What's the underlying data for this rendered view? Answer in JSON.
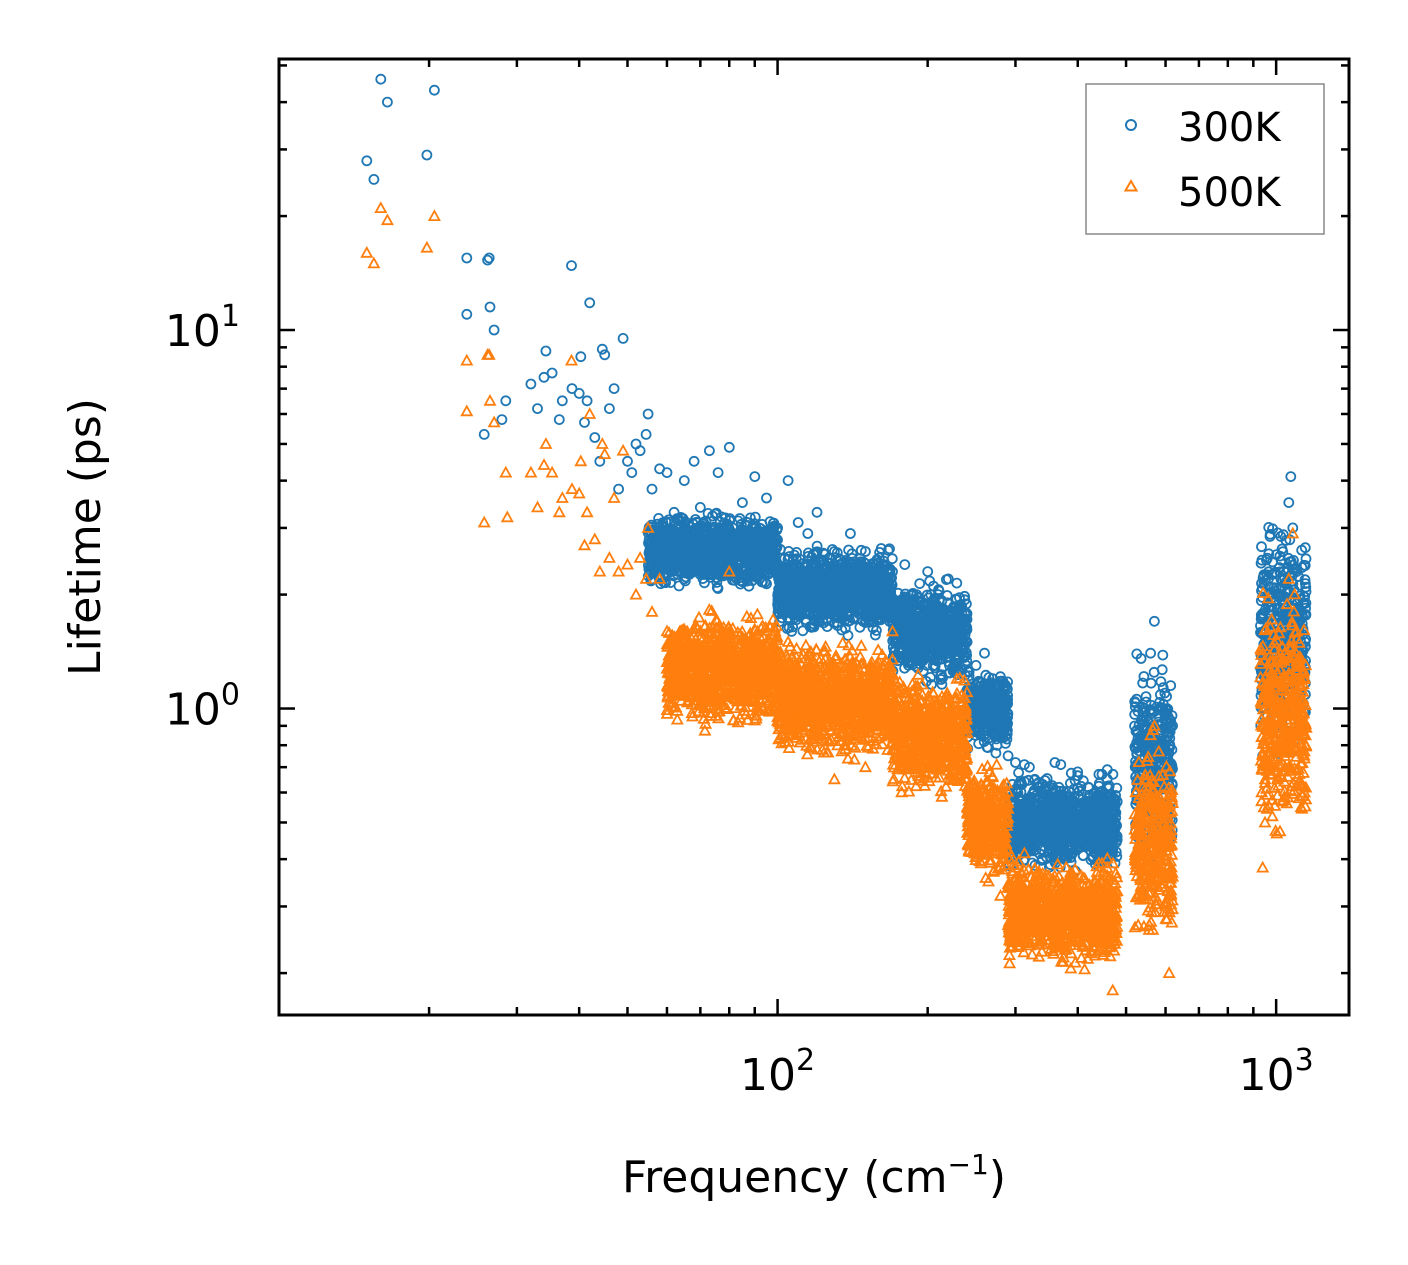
{
  "chart_data": {
    "type": "scatter",
    "title": "",
    "xlabel": "Frequency (cm",
    "xlabel_superscript": "−1",
    "xlabel_suffix": ")",
    "ylabel": "Lifetime (ps)",
    "xscale": "log",
    "yscale": "log",
    "xlim": [
      10,
      1400
    ],
    "ylim": [
      0.155,
      52
    ],
    "x_ticks": [
      {
        "value": 100,
        "base": "10",
        "exp": "2"
      },
      {
        "value": 1000,
        "base": "10",
        "exp": "3"
      }
    ],
    "y_ticks": [
      {
        "value": 1,
        "base": "10",
        "exp": "0"
      },
      {
        "value": 10,
        "base": "10",
        "exp": "1"
      }
    ],
    "legend_position": "top-right",
    "series": [
      {
        "name": "300K",
        "marker": "circle-open",
        "color": "#1f77b4",
        "points": [
          [
            15,
            28
          ],
          [
            15.5,
            25
          ],
          [
            16,
            46
          ],
          [
            16.5,
            40
          ],
          [
            19.8,
            29
          ],
          [
            20.5,
            43
          ],
          [
            23.8,
            15.5
          ],
          [
            23.8,
            11
          ],
          [
            26.2,
            15.3
          ],
          [
            26.4,
            15.5
          ],
          [
            26.5,
            11.5
          ],
          [
            27,
            10
          ],
          [
            28.5,
            6.5
          ],
          [
            28,
            5.8
          ],
          [
            25.8,
            5.3
          ],
          [
            32,
            7.2
          ],
          [
            33,
            6.2
          ],
          [
            34,
            7.5
          ],
          [
            34.3,
            8.8
          ],
          [
            35.3,
            7.7
          ],
          [
            36.5,
            5.8
          ],
          [
            37,
            6.5
          ],
          [
            38.6,
            14.8
          ],
          [
            38.7,
            7.0
          ],
          [
            40,
            6.8
          ],
          [
            40.3,
            8.5
          ],
          [
            41,
            5.7
          ],
          [
            41.5,
            6.5
          ],
          [
            42,
            11.8
          ],
          [
            43,
            5.2
          ],
          [
            44,
            4.5
          ],
          [
            44.5,
            8.9
          ],
          [
            45,
            8.6
          ],
          [
            46,
            6.2
          ],
          [
            47,
            7.0
          ],
          [
            48,
            3.8
          ],
          [
            49,
            9.5
          ],
          [
            50,
            4.5
          ],
          [
            51,
            4.2
          ],
          [
            52,
            5.0
          ],
          [
            53,
            4.8
          ],
          [
            54.5,
            5.3
          ],
          [
            55,
            6.0
          ],
          [
            56,
            3.8
          ],
          [
            58,
            4.3
          ],
          [
            60,
            4.2
          ],
          [
            62,
            3.3
          ],
          [
            65,
            4.0
          ],
          [
            68,
            4.5
          ],
          [
            70,
            3.4
          ],
          [
            73,
            4.8
          ],
          [
            76,
            4.2
          ],
          [
            80,
            4.9
          ],
          [
            85,
            3.5
          ],
          [
            90,
            4.1
          ],
          [
            95,
            3.6
          ],
          [
            100,
            3.0
          ],
          [
            105,
            4.0
          ],
          [
            110,
            3.1
          ],
          [
            115,
            2.9
          ],
          [
            120,
            3.3
          ],
          [
            130,
            2.6
          ],
          [
            140,
            2.9
          ],
          [
            150,
            2.6
          ],
          [
            160,
            2.5
          ],
          [
            170,
            2.3
          ],
          [
            180,
            2.4
          ],
          [
            190,
            2.0
          ],
          [
            200,
            2.3
          ],
          [
            210,
            2.0
          ],
          [
            220,
            2.2
          ],
          [
            230,
            1.8
          ],
          [
            240,
            1.5
          ],
          [
            250,
            1.3
          ],
          [
            260,
            1.4
          ],
          [
            270,
            1.2
          ],
          [
            280,
            1.05
          ],
          [
            290,
            0.75
          ],
          [
            300,
            0.72
          ],
          [
            320,
            0.7
          ],
          [
            340,
            0.6
          ],
          [
            360,
            0.72
          ],
          [
            380,
            0.55
          ],
          [
            400,
            0.68
          ],
          [
            420,
            0.62
          ],
          [
            450,
            0.5
          ],
          [
            470,
            0.42
          ],
          [
            530,
            0.8
          ],
          [
            545,
            1.0
          ],
          [
            560,
            1.4
          ],
          [
            570,
            1.7
          ],
          [
            580,
            0.9
          ],
          [
            600,
            0.55
          ],
          [
            610,
            0.45
          ],
          [
            940,
            0.75
          ],
          [
            950,
            0.95
          ],
          [
            1000,
            1.5
          ],
          [
            1040,
            2.2
          ],
          [
            1060,
            3.5
          ],
          [
            1070,
            4.1
          ],
          [
            1080,
            3.0
          ],
          [
            1100,
            2.3
          ],
          [
            1120,
            1.8
          ],
          [
            1140,
            1.3
          ]
        ],
        "bands": [
          {
            "x0": 55,
            "x1": 100,
            "lo": 2.0,
            "hi": 3.4
          },
          {
            "x0": 100,
            "x1": 170,
            "lo": 1.5,
            "hi": 2.8
          },
          {
            "x0": 170,
            "x1": 240,
            "lo": 1.1,
            "hi": 2.3
          },
          {
            "x0": 240,
            "x1": 290,
            "lo": 0.75,
            "hi": 1.3
          },
          {
            "x0": 290,
            "x1": 480,
            "lo": 0.35,
            "hi": 0.72
          },
          {
            "x0": 520,
            "x1": 620,
            "lo": 0.35,
            "hi": 1.5
          },
          {
            "x0": 930,
            "x1": 1150,
            "lo": 0.7,
            "hi": 3.5
          }
        ]
      },
      {
        "name": "500K",
        "marker": "triangle-open",
        "color": "#ff7f0e",
        "points": [
          [
            15,
            16
          ],
          [
            15.5,
            15
          ],
          [
            16,
            21
          ],
          [
            16.5,
            19.5
          ],
          [
            19.8,
            16.5
          ],
          [
            20.5,
            20
          ],
          [
            23.8,
            8.3
          ],
          [
            23.8,
            6.1
          ],
          [
            26.2,
            8.6
          ],
          [
            26.4,
            8.6
          ],
          [
            26.5,
            6.5
          ],
          [
            27,
            5.7
          ],
          [
            28.5,
            4.2
          ],
          [
            25.8,
            3.1
          ],
          [
            28.7,
            3.2
          ],
          [
            32,
            4.2
          ],
          [
            33,
            3.4
          ],
          [
            34,
            4.4
          ],
          [
            34.3,
            5.0
          ],
          [
            35.3,
            4.2
          ],
          [
            36.5,
            3.3
          ],
          [
            37,
            3.6
          ],
          [
            38.6,
            8.3
          ],
          [
            38.7,
            3.8
          ],
          [
            40,
            3.7
          ],
          [
            40.3,
            4.5
          ],
          [
            41,
            2.7
          ],
          [
            41.5,
            3.3
          ],
          [
            42,
            6.0
          ],
          [
            43,
            2.8
          ],
          [
            44,
            2.3
          ],
          [
            44.5,
            5.0
          ],
          [
            45,
            4.7
          ],
          [
            46,
            2.5
          ],
          [
            47,
            3.6
          ],
          [
            48,
            2.3
          ],
          [
            49,
            4.8
          ],
          [
            50,
            2.4
          ],
          [
            52,
            2.0
          ],
          [
            53,
            2.5
          ],
          [
            54.5,
            2.2
          ],
          [
            55,
            3.0
          ],
          [
            56,
            1.8
          ],
          [
            58,
            2.2
          ],
          [
            60,
            1.6
          ],
          [
            62,
            1.4
          ],
          [
            65,
            1.6
          ],
          [
            68,
            1.1
          ],
          [
            70,
            1.6
          ],
          [
            73,
            1.4
          ],
          [
            76,
            1.2
          ],
          [
            80,
            2.3
          ],
          [
            85,
            1.3
          ],
          [
            90,
            1.5
          ],
          [
            95,
            1.2
          ],
          [
            100,
            1.1
          ],
          [
            105,
            1.5
          ],
          [
            110,
            1.2
          ],
          [
            120,
            1.0
          ],
          [
            130,
            0.65
          ],
          [
            140,
            0.9
          ],
          [
            150,
            0.7
          ],
          [
            160,
            1.0
          ],
          [
            170,
            1.6
          ],
          [
            180,
            1.1
          ],
          [
            190,
            0.9
          ],
          [
            200,
            0.9
          ],
          [
            210,
            0.8
          ],
          [
            220,
            0.9
          ],
          [
            240,
            0.65
          ],
          [
            260,
            0.55
          ],
          [
            280,
            0.32
          ],
          [
            300,
            0.38
          ],
          [
            320,
            0.3
          ],
          [
            340,
            0.26
          ],
          [
            360,
            0.35
          ],
          [
            380,
            0.28
          ],
          [
            400,
            0.32
          ],
          [
            420,
            0.26
          ],
          [
            450,
            0.23
          ],
          [
            470,
            0.18
          ],
          [
            530,
            0.5
          ],
          [
            545,
            0.65
          ],
          [
            560,
            0.85
          ],
          [
            570,
            0.9
          ],
          [
            580,
            0.45
          ],
          [
            600,
            0.3
          ],
          [
            610,
            0.2
          ],
          [
            940,
            0.38
          ],
          [
            950,
            0.5
          ],
          [
            1000,
            0.8
          ],
          [
            1040,
            1.4
          ],
          [
            1060,
            2.2
          ],
          [
            1080,
            2.9
          ],
          [
            1100,
            1.6
          ],
          [
            1120,
            1.0
          ],
          [
            1140,
            0.6
          ]
        ],
        "bands": [
          {
            "x0": 60,
            "x1": 100,
            "lo": 0.85,
            "hi": 1.9
          },
          {
            "x0": 100,
            "x1": 170,
            "lo": 0.7,
            "hi": 1.6
          },
          {
            "x0": 170,
            "x1": 240,
            "lo": 0.55,
            "hi": 1.3
          },
          {
            "x0": 240,
            "x1": 290,
            "lo": 0.33,
            "hi": 0.75
          },
          {
            "x0": 290,
            "x1": 480,
            "lo": 0.2,
            "hi": 0.42
          },
          {
            "x0": 520,
            "x1": 620,
            "lo": 0.22,
            "hi": 0.9
          },
          {
            "x0": 930,
            "x1": 1150,
            "lo": 0.4,
            "hi": 2.2
          }
        ]
      }
    ]
  }
}
